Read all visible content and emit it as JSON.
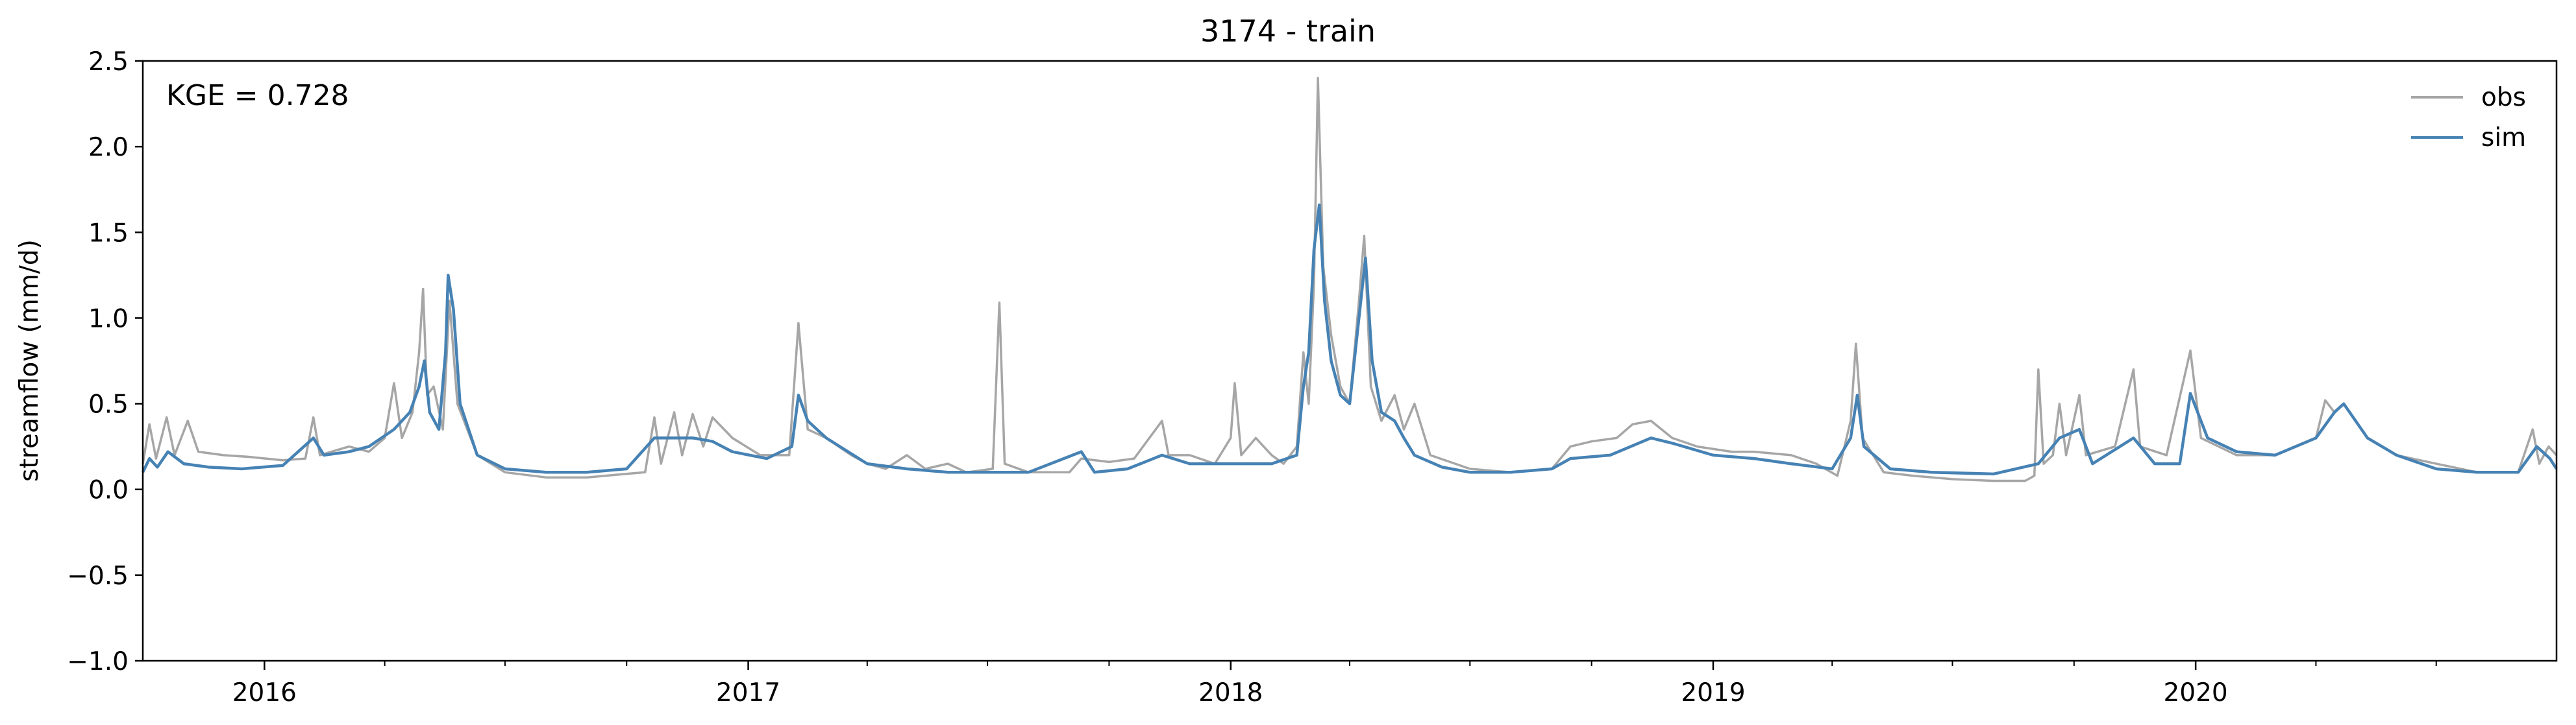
{
  "chart_data": {
    "type": "line",
    "title": "3174 - train",
    "xlabel": "",
    "ylabel": "streamflow (mm/d)",
    "ylim": [
      -1.0,
      2.5
    ],
    "xlim": [
      "2015-10-01",
      "2020-09-30"
    ],
    "y_ticks": [
      "−1.0",
      "−0.5",
      "0.0",
      "0.5",
      "1.0",
      "1.5",
      "2.0",
      "2.5"
    ],
    "y_tick_values": [
      -1.0,
      -0.5,
      0.0,
      0.5,
      1.0,
      1.5,
      2.0,
      2.5
    ],
    "x_ticks": [
      "2016",
      "2017",
      "2018",
      "2019",
      "2020"
    ],
    "x_tick_dates": [
      "2016-01-01",
      "2017-01-01",
      "2018-01-01",
      "2019-01-01",
      "2020-01-01"
    ],
    "grid": false,
    "legend_position": "top-right",
    "annotation": "KGE = 0.728",
    "series": [
      {
        "name": "obs",
        "color": "#a6a6a6",
        "points": [
          [
            "2015-10-01",
            0.15
          ],
          [
            "2015-10-06",
            0.38
          ],
          [
            "2015-10-11",
            0.18
          ],
          [
            "2015-10-19",
            0.42
          ],
          [
            "2015-10-25",
            0.2
          ],
          [
            "2015-11-04",
            0.4
          ],
          [
            "2015-11-12",
            0.22
          ],
          [
            "2015-12-01",
            0.2
          ],
          [
            "2015-12-20",
            0.19
          ],
          [
            "2016-01-15",
            0.17
          ],
          [
            "2016-02-01",
            0.18
          ],
          [
            "2016-02-07",
            0.42
          ],
          [
            "2016-02-12",
            0.2
          ],
          [
            "2016-03-05",
            0.25
          ],
          [
            "2016-03-20",
            0.22
          ],
          [
            "2016-04-01",
            0.3
          ],
          [
            "2016-04-08",
            0.62
          ],
          [
            "2016-04-14",
            0.3
          ],
          [
            "2016-04-22",
            0.45
          ],
          [
            "2016-04-27",
            0.8
          ],
          [
            "2016-04-30",
            1.17
          ],
          [
            "2016-05-03",
            0.55
          ],
          [
            "2016-05-08",
            0.6
          ],
          [
            "2016-05-15",
            0.35
          ],
          [
            "2016-05-20",
            1.1
          ],
          [
            "2016-05-26",
            0.5
          ],
          [
            "2016-06-10",
            0.2
          ],
          [
            "2016-07-01",
            0.1
          ],
          [
            "2016-08-01",
            0.07
          ],
          [
            "2016-09-01",
            0.07
          ],
          [
            "2016-09-30",
            0.09
          ],
          [
            "2016-10-15",
            0.1
          ],
          [
            "2016-10-22",
            0.42
          ],
          [
            "2016-10-27",
            0.15
          ],
          [
            "2016-11-06",
            0.45
          ],
          [
            "2016-11-12",
            0.2
          ],
          [
            "2016-11-20",
            0.44
          ],
          [
            "2016-11-28",
            0.25
          ],
          [
            "2016-12-05",
            0.42
          ],
          [
            "2016-12-20",
            0.3
          ],
          [
            "2017-01-10",
            0.2
          ],
          [
            "2017-02-01",
            0.2
          ],
          [
            "2017-02-08",
            0.97
          ],
          [
            "2017-02-15",
            0.35
          ],
          [
            "2017-03-01",
            0.3
          ],
          [
            "2017-03-20",
            0.2
          ],
          [
            "2017-04-01",
            0.15
          ],
          [
            "2017-04-15",
            0.12
          ],
          [
            "2017-05-01",
            0.2
          ],
          [
            "2017-05-15",
            0.12
          ],
          [
            "2017-06-01",
            0.15
          ],
          [
            "2017-06-15",
            0.1
          ],
          [
            "2017-07-05",
            0.12
          ],
          [
            "2017-07-10",
            1.09
          ],
          [
            "2017-07-14",
            0.15
          ],
          [
            "2017-08-01",
            0.1
          ],
          [
            "2017-09-01",
            0.1
          ],
          [
            "2017-09-10",
            0.18
          ],
          [
            "2017-10-01",
            0.16
          ],
          [
            "2017-10-20",
            0.18
          ],
          [
            "2017-11-10",
            0.4
          ],
          [
            "2017-11-15",
            0.2
          ],
          [
            "2017-12-01",
            0.2
          ],
          [
            "2017-12-20",
            0.15
          ],
          [
            "2018-01-01",
            0.3
          ],
          [
            "2018-01-04",
            0.62
          ],
          [
            "2018-01-09",
            0.2
          ],
          [
            "2018-01-20",
            0.3
          ],
          [
            "2018-02-01",
            0.2
          ],
          [
            "2018-02-10",
            0.15
          ],
          [
            "2018-02-20",
            0.25
          ],
          [
            "2018-02-25",
            0.8
          ],
          [
            "2018-03-01",
            0.5
          ],
          [
            "2018-03-05",
            1.2
          ],
          [
            "2018-03-08",
            2.4
          ],
          [
            "2018-03-12",
            1.3
          ],
          [
            "2018-03-18",
            0.9
          ],
          [
            "2018-03-25",
            0.6
          ],
          [
            "2018-04-01",
            0.5
          ],
          [
            "2018-04-08",
            1.1
          ],
          [
            "2018-04-12",
            1.48
          ],
          [
            "2018-04-17",
            0.6
          ],
          [
            "2018-04-25",
            0.4
          ],
          [
            "2018-05-05",
            0.55
          ],
          [
            "2018-05-12",
            0.35
          ],
          [
            "2018-05-20",
            0.5
          ],
          [
            "2018-06-01",
            0.2
          ],
          [
            "2018-07-01",
            0.12
          ],
          [
            "2018-08-01",
            0.1
          ],
          [
            "2018-09-01",
            0.12
          ],
          [
            "2018-09-15",
            0.25
          ],
          [
            "2018-10-01",
            0.28
          ],
          [
            "2018-10-20",
            0.3
          ],
          [
            "2018-11-01",
            0.38
          ],
          [
            "2018-11-15",
            0.4
          ],
          [
            "2018-12-01",
            0.3
          ],
          [
            "2018-12-20",
            0.25
          ],
          [
            "2019-01-15",
            0.22
          ],
          [
            "2019-02-01",
            0.22
          ],
          [
            "2019-03-01",
            0.2
          ],
          [
            "2019-03-20",
            0.15
          ],
          [
            "2019-04-05",
            0.08
          ],
          [
            "2019-04-15",
            0.4
          ],
          [
            "2019-04-19",
            0.85
          ],
          [
            "2019-04-24",
            0.3
          ],
          [
            "2019-05-10",
            0.1
          ],
          [
            "2019-06-01",
            0.08
          ],
          [
            "2019-07-01",
            0.06
          ],
          [
            "2019-08-01",
            0.05
          ],
          [
            "2019-08-25",
            0.05
          ],
          [
            "2019-09-01",
            0.08
          ],
          [
            "2019-09-04",
            0.7
          ],
          [
            "2019-09-08",
            0.15
          ],
          [
            "2019-09-15",
            0.2
          ],
          [
            "2019-09-20",
            0.5
          ],
          [
            "2019-09-25",
            0.2
          ],
          [
            "2019-10-05",
            0.55
          ],
          [
            "2019-10-10",
            0.2
          ],
          [
            "2019-11-01",
            0.25
          ],
          [
            "2019-11-15",
            0.7
          ],
          [
            "2019-11-20",
            0.25
          ],
          [
            "2019-12-10",
            0.2
          ],
          [
            "2019-12-28",
            0.81
          ],
          [
            "2020-01-05",
            0.3
          ],
          [
            "2020-02-01",
            0.2
          ],
          [
            "2020-03-01",
            0.2
          ],
          [
            "2020-04-01",
            0.3
          ],
          [
            "2020-04-08",
            0.52
          ],
          [
            "2020-04-15",
            0.45
          ],
          [
            "2020-04-22",
            0.5
          ],
          [
            "2020-05-10",
            0.3
          ],
          [
            "2020-06-01",
            0.2
          ],
          [
            "2020-07-01",
            0.15
          ],
          [
            "2020-08-01",
            0.1
          ],
          [
            "2020-09-01",
            0.1
          ],
          [
            "2020-09-12",
            0.35
          ],
          [
            "2020-09-17",
            0.15
          ],
          [
            "2020-09-24",
            0.25
          ],
          [
            "2020-09-30",
            0.2
          ]
        ]
      },
      {
        "name": "sim",
        "color": "#4682b4",
        "points": [
          [
            "2015-10-01",
            0.1
          ],
          [
            "2015-10-06",
            0.18
          ],
          [
            "2015-10-12",
            0.13
          ],
          [
            "2015-10-20",
            0.22
          ],
          [
            "2015-11-01",
            0.15
          ],
          [
            "2015-11-20",
            0.13
          ],
          [
            "2015-12-15",
            0.12
          ],
          [
            "2016-01-15",
            0.14
          ],
          [
            "2016-02-07",
            0.3
          ],
          [
            "2016-02-15",
            0.2
          ],
          [
            "2016-03-05",
            0.22
          ],
          [
            "2016-03-20",
            0.25
          ],
          [
            "2016-04-08",
            0.35
          ],
          [
            "2016-04-20",
            0.45
          ],
          [
            "2016-04-27",
            0.6
          ],
          [
            "2016-05-01",
            0.75
          ],
          [
            "2016-05-05",
            0.45
          ],
          [
            "2016-05-12",
            0.35
          ],
          [
            "2016-05-17",
            0.8
          ],
          [
            "2016-05-19",
            1.25
          ],
          [
            "2016-05-23",
            1.05
          ],
          [
            "2016-05-28",
            0.5
          ],
          [
            "2016-06-10",
            0.2
          ],
          [
            "2016-07-01",
            0.12
          ],
          [
            "2016-08-01",
            0.1
          ],
          [
            "2016-09-01",
            0.1
          ],
          [
            "2016-10-01",
            0.12
          ],
          [
            "2016-10-22",
            0.3
          ],
          [
            "2016-11-06",
            0.3
          ],
          [
            "2016-11-20",
            0.3
          ],
          [
            "2016-12-05",
            0.28
          ],
          [
            "2016-12-20",
            0.22
          ],
          [
            "2017-01-15",
            0.18
          ],
          [
            "2017-02-03",
            0.25
          ],
          [
            "2017-02-08",
            0.55
          ],
          [
            "2017-02-15",
            0.4
          ],
          [
            "2017-03-01",
            0.3
          ],
          [
            "2017-04-01",
            0.15
          ],
          [
            "2017-05-01",
            0.12
          ],
          [
            "2017-06-01",
            0.1
          ],
          [
            "2017-07-01",
            0.1
          ],
          [
            "2017-08-01",
            0.1
          ],
          [
            "2017-09-10",
            0.22
          ],
          [
            "2017-09-20",
            0.1
          ],
          [
            "2017-10-15",
            0.12
          ],
          [
            "2017-11-10",
            0.2
          ],
          [
            "2017-12-01",
            0.15
          ],
          [
            "2018-01-01",
            0.15
          ],
          [
            "2018-01-09",
            0.15
          ],
          [
            "2018-02-01",
            0.15
          ],
          [
            "2018-02-20",
            0.2
          ],
          [
            "2018-02-25",
            0.6
          ],
          [
            "2018-03-01",
            0.8
          ],
          [
            "2018-03-05",
            1.4
          ],
          [
            "2018-03-09",
            1.66
          ],
          [
            "2018-03-13",
            1.1
          ],
          [
            "2018-03-18",
            0.75
          ],
          [
            "2018-03-25",
            0.55
          ],
          [
            "2018-04-01",
            0.5
          ],
          [
            "2018-04-08",
            1.0
          ],
          [
            "2018-04-13",
            1.35
          ],
          [
            "2018-04-18",
            0.75
          ],
          [
            "2018-04-25",
            0.45
          ],
          [
            "2018-05-05",
            0.4
          ],
          [
            "2018-05-12",
            0.3
          ],
          [
            "2018-05-20",
            0.2
          ],
          [
            "2018-06-10",
            0.13
          ],
          [
            "2018-07-01",
            0.1
          ],
          [
            "2018-08-01",
            0.1
          ],
          [
            "2018-09-01",
            0.12
          ],
          [
            "2018-09-15",
            0.18
          ],
          [
            "2018-10-15",
            0.2
          ],
          [
            "2018-11-15",
            0.3
          ],
          [
            "2018-12-01",
            0.27
          ],
          [
            "2019-01-01",
            0.2
          ],
          [
            "2019-02-01",
            0.18
          ],
          [
            "2019-03-01",
            0.15
          ],
          [
            "2019-04-01",
            0.12
          ],
          [
            "2019-04-15",
            0.3
          ],
          [
            "2019-04-20",
            0.55
          ],
          [
            "2019-04-25",
            0.25
          ],
          [
            "2019-05-15",
            0.12
          ],
          [
            "2019-06-15",
            0.1
          ],
          [
            "2019-08-01",
            0.09
          ],
          [
            "2019-09-04",
            0.15
          ],
          [
            "2019-09-20",
            0.3
          ],
          [
            "2019-10-05",
            0.35
          ],
          [
            "2019-10-15",
            0.15
          ],
          [
            "2019-11-15",
            0.3
          ],
          [
            "2019-12-01",
            0.15
          ],
          [
            "2019-12-20",
            0.15
          ],
          [
            "2019-12-28",
            0.56
          ],
          [
            "2020-01-10",
            0.3
          ],
          [
            "2020-02-01",
            0.22
          ],
          [
            "2020-03-01",
            0.2
          ],
          [
            "2020-04-01",
            0.3
          ],
          [
            "2020-04-15",
            0.45
          ],
          [
            "2020-04-22",
            0.5
          ],
          [
            "2020-05-10",
            0.3
          ],
          [
            "2020-06-01",
            0.2
          ],
          [
            "2020-07-01",
            0.12
          ],
          [
            "2020-08-01",
            0.1
          ],
          [
            "2020-09-01",
            0.1
          ],
          [
            "2020-09-15",
            0.25
          ],
          [
            "2020-09-25",
            0.18
          ],
          [
            "2020-09-30",
            0.12
          ]
        ]
      }
    ]
  }
}
